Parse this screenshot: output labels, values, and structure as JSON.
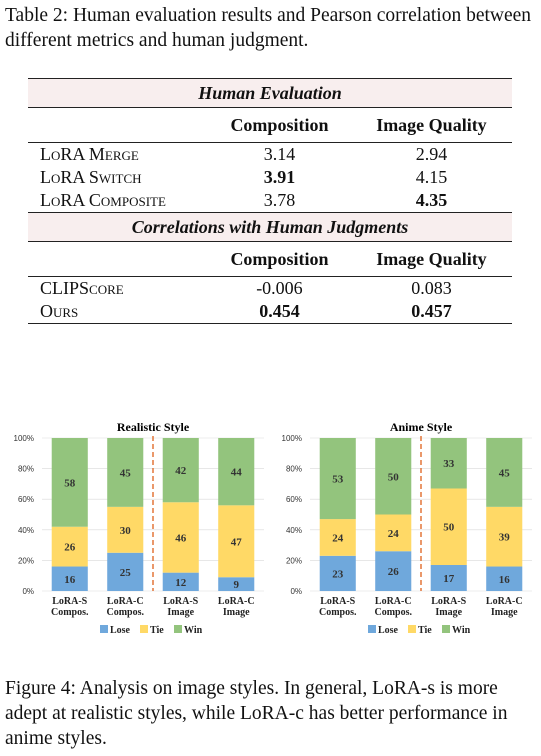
{
  "table": {
    "caption": "Table 2: Human evaluation results and Pearson correlation between different metrics and human judgment.",
    "section1_title": "Human Evaluation",
    "section2_title": "Correlations with Human Judgments",
    "col1": "Composition",
    "col2": "Image Quality",
    "human_rows": [
      {
        "name": "LoRA Merge",
        "composition": "3.14",
        "quality": "2.94"
      },
      {
        "name": "LoRA Switch",
        "composition": "3.91",
        "quality": "4.15"
      },
      {
        "name": "LoRA Composite",
        "composition": "3.78",
        "quality": "4.35"
      }
    ],
    "corr_rows": [
      {
        "name": "CLIPScore",
        "composition": "-0.006",
        "quality": "0.083"
      },
      {
        "name": "Ours",
        "composition": "0.454",
        "quality": "0.457"
      }
    ]
  },
  "figure_caption": "Figure 4: Analysis on image styles. In general, LoRA-s is more adept at realistic styles, while LoRA-c has better performance in anime styles.",
  "colors": {
    "lose": "#6fa8dc",
    "tie": "#ffd966",
    "win": "#93c47d",
    "divider": "#e06c2c",
    "grid": "#d9d9d9"
  },
  "chart_data": [
    {
      "type": "bar",
      "stacked": true,
      "title": "Realistic Style",
      "categories": [
        "LoRA-S\nCompos.",
        "LoRA-C\nCompos.",
        "LoRA-S\nImage",
        "LoRA-C\nImage"
      ],
      "series": [
        {
          "name": "Lose",
          "values": [
            16,
            25,
            12,
            9
          ]
        },
        {
          "name": "Tie",
          "values": [
            26,
            30,
            46,
            47
          ]
        },
        {
          "name": "Win",
          "values": [
            58,
            45,
            42,
            44
          ]
        }
      ],
      "yticks": [
        "0%",
        "20%",
        "40%",
        "60%",
        "80%",
        "100%"
      ],
      "ylim": [
        0,
        100
      ],
      "legend": "bottom"
    },
    {
      "type": "bar",
      "stacked": true,
      "title": "Anime Style",
      "categories": [
        "LoRA-S\nCompos.",
        "LoRA-C\nCompos.",
        "LoRA-S\nImage",
        "LoRA-C\nImage"
      ],
      "series": [
        {
          "name": "Lose",
          "values": [
            23,
            26,
            17,
            16
          ]
        },
        {
          "name": "Tie",
          "values": [
            24,
            24,
            50,
            39
          ]
        },
        {
          "name": "Win",
          "values": [
            53,
            50,
            33,
            45
          ]
        }
      ],
      "yticks": [
        "0%",
        "20%",
        "40%",
        "60%",
        "80%",
        "100%"
      ],
      "ylim": [
        0,
        100
      ],
      "legend": "bottom"
    }
  ]
}
